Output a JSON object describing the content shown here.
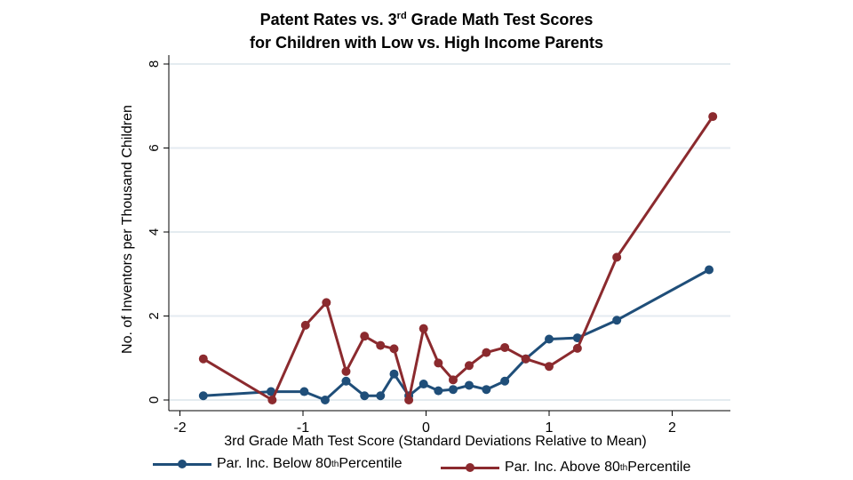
{
  "chart_data": {
    "type": "line",
    "title": {
      "line1_main": "Patent Rates vs. 3",
      "line1_sup": "rd",
      "line1_end": " Grade Math Test Scores",
      "line2": "for Children with Low vs. High Income Parents"
    },
    "xlabel": "3rd Grade Math Test Score (Standard Deviations Relative to Mean)",
    "ylabel": "No. of Inventors per Thousand Children",
    "xlim": [
      -2,
      2.45
    ],
    "ylim": [
      0,
      8
    ],
    "xticks": [
      -2,
      -1,
      0,
      1,
      2
    ],
    "yticks": [
      0,
      2,
      4,
      6,
      8
    ],
    "xtick_labels": [
      "-2",
      "-1",
      "0",
      "1",
      "2"
    ],
    "ytick_labels": [
      "0",
      "2",
      "4",
      "6",
      "8"
    ],
    "grid": true,
    "series": [
      {
        "name": "Par. Inc. Below 80th Percentile",
        "legend_main": "Par. Inc. Below 80",
        "legend_sup": "th",
        "legend_end": " Percentile",
        "color": "#1f4e79",
        "points": [
          [
            -1.81,
            0.1
          ],
          [
            -1.26,
            0.2
          ],
          [
            -0.99,
            0.2
          ],
          [
            -0.82,
            0.0
          ],
          [
            -0.65,
            0.45
          ],
          [
            -0.5,
            0.1
          ],
          [
            -0.37,
            0.1
          ],
          [
            -0.26,
            0.62
          ],
          [
            -0.14,
            0.1
          ],
          [
            -0.02,
            0.38
          ],
          [
            0.1,
            0.22
          ],
          [
            0.22,
            0.25
          ],
          [
            0.35,
            0.35
          ],
          [
            0.49,
            0.25
          ],
          [
            0.64,
            0.45
          ],
          [
            0.81,
            0.98
          ],
          [
            1.0,
            1.45
          ],
          [
            1.23,
            1.48
          ],
          [
            1.55,
            1.9
          ],
          [
            2.3,
            3.1
          ]
        ]
      },
      {
        "name": "Par. Inc. Above 80th Percentile",
        "legend_main": "Par. Inc. Above 80",
        "legend_sup": "th",
        "legend_end": " Percentile",
        "color": "#8b2a2e",
        "points": [
          [
            -1.81,
            0.98
          ],
          [
            -1.25,
            0.0
          ],
          [
            -0.98,
            1.78
          ],
          [
            -0.81,
            2.32
          ],
          [
            -0.65,
            0.68
          ],
          [
            -0.5,
            1.52
          ],
          [
            -0.37,
            1.3
          ],
          [
            -0.26,
            1.22
          ],
          [
            -0.14,
            0.0
          ],
          [
            -0.02,
            1.7
          ],
          [
            0.1,
            0.88
          ],
          [
            0.22,
            0.48
          ],
          [
            0.35,
            0.82
          ],
          [
            0.49,
            1.13
          ],
          [
            0.64,
            1.25
          ],
          [
            0.81,
            0.98
          ],
          [
            1.0,
            0.8
          ],
          [
            1.23,
            1.23
          ],
          [
            1.55,
            3.4
          ],
          [
            2.33,
            6.75
          ]
        ]
      }
    ]
  }
}
